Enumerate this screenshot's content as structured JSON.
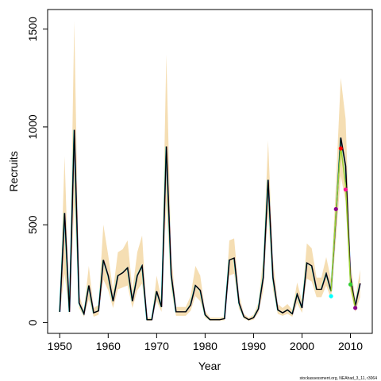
{
  "chart_data": {
    "type": "line",
    "xlabel": "Year",
    "ylabel": "Recruits",
    "footnote": "stockassessment.org, NEAhad_3_11, r3064",
    "xlim": [
      1947.5,
      2014.5
    ],
    "ylim": [
      -55,
      1600
    ],
    "x_ticks": [
      1950,
      1960,
      1970,
      1980,
      1990,
      2000,
      2010
    ],
    "y_ticks": [
      0,
      500,
      1000,
      1500
    ],
    "colors": {
      "band": "#f5deb3",
      "main_line": "#000000",
      "retro_lines": [
        "#1e90ff",
        "#ff0000",
        "#8b008b",
        "#00ced1"
      ],
      "retro_points": [
        "#00ffff",
        "#8b008b",
        "#ff0000",
        "#ff1493",
        "#32cd32",
        "#8b008b"
      ]
    },
    "series": [
      {
        "x": [
          1950,
          1951,
          1952,
          1953,
          1954,
          1955,
          1956,
          1957,
          1958,
          1959,
          1960,
          1961,
          1962,
          1963,
          1964,
          1965,
          1966,
          1967,
          1968,
          1969,
          1970,
          1971,
          1972,
          1973,
          1974,
          1975,
          1976,
          1977,
          1978,
          1979,
          1980,
          1981,
          1982,
          1983,
          1984,
          1985,
          1986,
          1987,
          1988,
          1989,
          1990,
          1991,
          1992,
          1993,
          1994,
          1995,
          1996,
          1997,
          1998,
          1999,
          2000,
          2001,
          2002,
          2003,
          2004,
          2005,
          2006,
          2007,
          2008,
          2009,
          2010,
          2011,
          2012
        ],
        "y": [
          55,
          560,
          55,
          985,
          100,
          45,
          190,
          50,
          60,
          320,
          240,
          110,
          240,
          255,
          280,
          110,
          240,
          290,
          15,
          15,
          160,
          80,
          900,
          245,
          55,
          55,
          55,
          90,
          190,
          165,
          40,
          15,
          15,
          15,
          20,
          320,
          330,
          100,
          30,
          15,
          25,
          70,
          230,
          730,
          230,
          65,
          50,
          65,
          45,
          145,
          75,
          305,
          290,
          170,
          170,
          250,
          160,
          545,
          945,
          800,
          230,
          85,
          200
        ],
        "band_lower": [
          40,
          250,
          40,
          600,
          75,
          30,
          120,
          30,
          40,
          220,
          165,
          75,
          170,
          180,
          190,
          75,
          165,
          200,
          10,
          10,
          110,
          55,
          600,
          170,
          35,
          35,
          35,
          60,
          135,
          110,
          25,
          10,
          10,
          10,
          12,
          240,
          250,
          70,
          20,
          10,
          15,
          50,
          160,
          560,
          170,
          45,
          35,
          45,
          30,
          100,
          50,
          225,
          210,
          130,
          130,
          190,
          120,
          420,
          750,
          620,
          160,
          55,
          130
        ],
        "band_upper": [
          80,
          850,
          80,
          1540,
          140,
          65,
          290,
          75,
          90,
          500,
          345,
          165,
          360,
          375,
          420,
          165,
          360,
          445,
          25,
          25,
          240,
          115,
          1370,
          350,
          80,
          80,
          80,
          135,
          290,
          240,
          60,
          25,
          25,
          25,
          30,
          420,
          430,
          145,
          45,
          25,
          40,
          100,
          330,
          930,
          330,
          95,
          75,
          95,
          65,
          205,
          110,
          405,
          380,
          230,
          230,
          335,
          220,
          710,
          1250,
          1040,
          310,
          120,
          270
        ]
      }
    ],
    "retro_points": [
      {
        "x": 2006,
        "y": 135,
        "color": "#00ffff"
      },
      {
        "x": 2007,
        "y": 580,
        "color": "#8b008b"
      },
      {
        "x": 2008,
        "y": 890,
        "color": "#ff0000"
      },
      {
        "x": 2009,
        "y": 680,
        "color": "#ff1493"
      },
      {
        "x": 2010,
        "y": 195,
        "color": "#32cd32"
      },
      {
        "x": 2011,
        "y": 75,
        "color": "#8b008b"
      }
    ],
    "retro_tail": {
      "x": [
        2006,
        2007,
        2008,
        2009,
        2010,
        2011
      ],
      "y": [
        160,
        560,
        900,
        700,
        200,
        75
      ],
      "color": "#9acd32"
    }
  }
}
